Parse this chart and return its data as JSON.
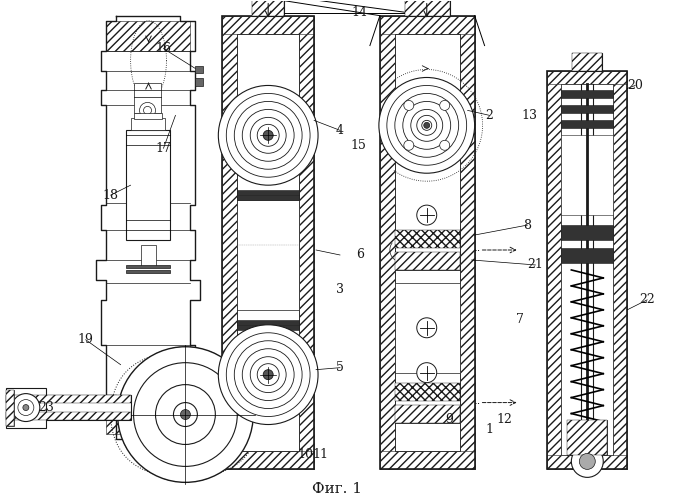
{
  "caption": "Фиг. 1",
  "bg_color": "#ffffff",
  "line_color": "#1a1a1a",
  "fig_width": 6.74,
  "fig_height": 5.0,
  "dpi": 100
}
